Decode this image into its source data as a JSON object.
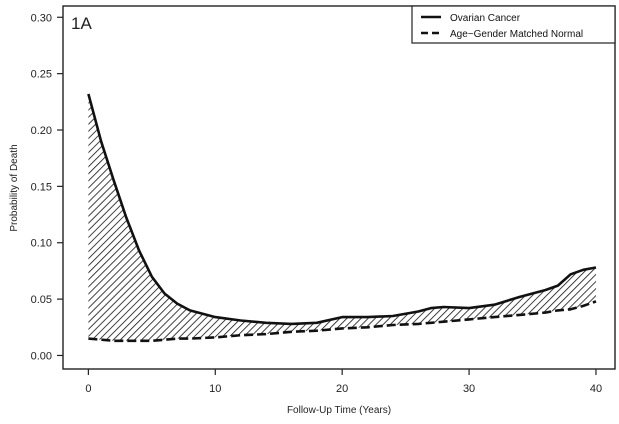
{
  "chart_data": {
    "type": "area",
    "panel_label": "1A",
    "xlabel": "Follow-Up Time (Years)",
    "ylabel": "Probability of Death",
    "xlim": [
      -2,
      41.5
    ],
    "ylim": [
      -0.012,
      0.31
    ],
    "xticks": [
      0,
      10,
      20,
      30,
      40
    ],
    "yticks": [
      0.0,
      0.05,
      0.1,
      0.15,
      0.2,
      0.25,
      0.3
    ],
    "ytick_labels": [
      "0.00",
      "0.05",
      "0.10",
      "0.15",
      "0.20",
      "0.25",
      "0.30"
    ],
    "grid": false,
    "legend_position": "top-right",
    "fill": "diagonal-hatch-between-series",
    "x": [
      0,
      1,
      2,
      3,
      4,
      5,
      6,
      7,
      8,
      10,
      12,
      14,
      16,
      18,
      20,
      22,
      24,
      26,
      27,
      28,
      30,
      32,
      34,
      36,
      37,
      38,
      39,
      40
    ],
    "series": [
      {
        "name": "Ovarian Cancer",
        "style": "solid",
        "values": [
          0.232,
          0.19,
          0.155,
          0.122,
          0.093,
          0.07,
          0.055,
          0.046,
          0.04,
          0.034,
          0.031,
          0.029,
          0.028,
          0.029,
          0.034,
          0.034,
          0.035,
          0.039,
          0.042,
          0.043,
          0.042,
          0.045,
          0.052,
          0.058,
          0.062,
          0.072,
          0.076,
          0.078
        ]
      },
      {
        "name": "Age−Gender Matched Normal",
        "style": "dashed",
        "values": [
          0.015,
          0.014,
          0.013,
          0.013,
          0.013,
          0.013,
          0.014,
          0.015,
          0.015,
          0.016,
          0.018,
          0.019,
          0.021,
          0.022,
          0.024,
          0.025,
          0.027,
          0.028,
          0.029,
          0.03,
          0.032,
          0.034,
          0.036,
          0.038,
          0.04,
          0.041,
          0.044,
          0.048
        ]
      }
    ]
  }
}
